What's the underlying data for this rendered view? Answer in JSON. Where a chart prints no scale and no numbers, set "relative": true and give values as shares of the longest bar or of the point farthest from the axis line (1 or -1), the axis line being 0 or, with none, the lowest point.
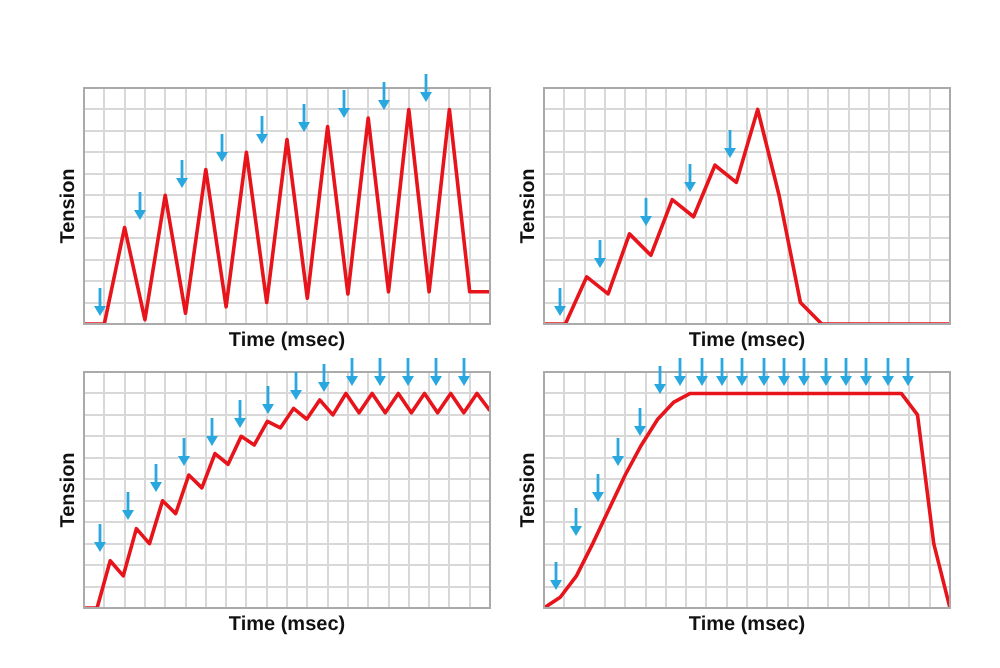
{
  "chart_data": [
    {
      "type": "line",
      "relative": true,
      "grid": true,
      "ylabel": "Tension",
      "xlabel": "Time (msec)",
      "categories": [
        null,
        null,
        null,
        null,
        null,
        null,
        null,
        null,
        null,
        null,
        null,
        null,
        null,
        null,
        null,
        null,
        null,
        null,
        null,
        null,
        null
      ],
      "series": [
        {
          "color": "#e8141b",
          "values": [
            0,
            0,
            0.45,
            0.02,
            0.6,
            0.05,
            0.72,
            0.08,
            0.8,
            0.1,
            0.86,
            0.12,
            0.92,
            0.14,
            0.96,
            0.15,
            1,
            0.15,
            1,
            0.15,
            0.15
          ]
        }
      ]
    },
    {
      "type": "line",
      "relative": true,
      "grid": true,
      "ylabel": "Tension",
      "xlabel": "Time (msec)",
      "categories": [
        null,
        null,
        null,
        null,
        null,
        null,
        null,
        null,
        null,
        null,
        null,
        null,
        null,
        null,
        null,
        null,
        null,
        null,
        null,
        null
      ],
      "series": [
        {
          "color": "#e8141b",
          "values": [
            0,
            0,
            0.22,
            0.14,
            0.42,
            0.32,
            0.58,
            0.5,
            0.74,
            0.66,
            1,
            0.6,
            0.1,
            0,
            0,
            0,
            0,
            0,
            0,
            0
          ]
        }
      ]
    },
    {
      "type": "line",
      "relative": true,
      "grid": true,
      "ylabel": "Tension",
      "xlabel": "Time (msec)",
      "categories": [
        null,
        null,
        null,
        null,
        null,
        null,
        null,
        null,
        null,
        null,
        null,
        null,
        null,
        null,
        null,
        null,
        null,
        null,
        null,
        null,
        null,
        null,
        null,
        null,
        null,
        null,
        null,
        null,
        null,
        null,
        null,
        null
      ],
      "series": [
        {
          "color": "#e8141b",
          "values": [
            0,
            0,
            0.22,
            0.15,
            0.37,
            0.3,
            0.5,
            0.44,
            0.62,
            0.56,
            0.72,
            0.67,
            0.8,
            0.76,
            0.87,
            0.84,
            0.93,
            0.88,
            0.97,
            0.9,
            1,
            0.91,
            1,
            0.91,
            1,
            0.91,
            1,
            0.91,
            1,
            0.91,
            1,
            0.92
          ]
        }
      ]
    },
    {
      "type": "line",
      "relative": true,
      "grid": true,
      "ylabel": "Tension",
      "xlabel": "Time (msec)",
      "categories": [
        null,
        null,
        null,
        null,
        null,
        null,
        null,
        null,
        null,
        null,
        null,
        null,
        null,
        null,
        null,
        null,
        null,
        null,
        null,
        null,
        null,
        null,
        null,
        null,
        null,
        null
      ],
      "series": [
        {
          "color": "#e8141b",
          "values": [
            0,
            0.05,
            0.15,
            0.3,
            0.46,
            0.62,
            0.76,
            0.88,
            0.96,
            1,
            1,
            1,
            1,
            1,
            1,
            1,
            1,
            1,
            1,
            1,
            1,
            1,
            1,
            0.9,
            0.3,
            0
          ]
        }
      ]
    }
  ]
}
